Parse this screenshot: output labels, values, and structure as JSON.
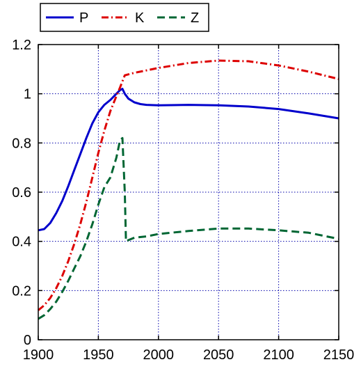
{
  "chart_data": {
    "type": "line",
    "title": "",
    "xlabel": "",
    "ylabel": "",
    "xlim": [
      1900,
      2150
    ],
    "ylim": [
      0,
      1.2
    ],
    "x_ticks": [
      1900,
      1950,
      2000,
      2050,
      2100,
      2150
    ],
    "x_tick_labels": [
      "1900",
      "1950",
      "2000",
      "2050",
      "2100",
      "2150"
    ],
    "y_ticks": [
      0,
      0.2,
      0.4,
      0.6,
      0.8,
      1.0,
      1.2
    ],
    "y_tick_labels": [
      "0",
      "0.2",
      "0.4",
      "0.6",
      "0.8",
      "1",
      "1.2"
    ],
    "grid": true,
    "legend_position": "top-left, above plot",
    "series": [
      {
        "name": "P",
        "color": "#0000cc",
        "style": "solid",
        "points": [
          [
            1900,
            0.445
          ],
          [
            1905,
            0.45
          ],
          [
            1910,
            0.475
          ],
          [
            1915,
            0.515
          ],
          [
            1920,
            0.565
          ],
          [
            1925,
            0.625
          ],
          [
            1930,
            0.69
          ],
          [
            1935,
            0.755
          ],
          [
            1940,
            0.82
          ],
          [
            1945,
            0.88
          ],
          [
            1950,
            0.925
          ],
          [
            1955,
            0.955
          ],
          [
            1960,
            0.975
          ],
          [
            1965,
            1.0
          ],
          [
            1968,
            1.015
          ],
          [
            1970,
            1.02
          ],
          [
            1972,
            1.0
          ],
          [
            1975,
            0.98
          ],
          [
            1980,
            0.965
          ],
          [
            1985,
            0.958
          ],
          [
            1990,
            0.955
          ],
          [
            2000,
            0.953
          ],
          [
            2025,
            0.955
          ],
          [
            2050,
            0.953
          ],
          [
            2075,
            0.948
          ],
          [
            2100,
            0.938
          ],
          [
            2125,
            0.92
          ],
          [
            2150,
            0.9
          ]
        ]
      },
      {
        "name": "K",
        "color": "#dd0000",
        "style": "dash-dot",
        "points": [
          [
            1900,
            0.12
          ],
          [
            1905,
            0.14
          ],
          [
            1910,
            0.17
          ],
          [
            1915,
            0.21
          ],
          [
            1920,
            0.26
          ],
          [
            1925,
            0.32
          ],
          [
            1930,
            0.39
          ],
          [
            1935,
            0.47
          ],
          [
            1940,
            0.56
          ],
          [
            1945,
            0.66
          ],
          [
            1950,
            0.76
          ],
          [
            1955,
            0.85
          ],
          [
            1960,
            0.93
          ],
          [
            1965,
            0.99
          ],
          [
            1968,
            1.025
          ],
          [
            1972,
            1.075
          ],
          [
            1980,
            1.085
          ],
          [
            2000,
            1.105
          ],
          [
            2025,
            1.125
          ],
          [
            2050,
            1.135
          ],
          [
            2075,
            1.132
          ],
          [
            2100,
            1.115
          ],
          [
            2125,
            1.09
          ],
          [
            2150,
            1.06
          ]
        ]
      },
      {
        "name": "Z",
        "color": "#006633",
        "style": "dashed",
        "points": [
          [
            1900,
            0.085
          ],
          [
            1905,
            0.1
          ],
          [
            1910,
            0.125
          ],
          [
            1915,
            0.155
          ],
          [
            1920,
            0.195
          ],
          [
            1925,
            0.24
          ],
          [
            1930,
            0.29
          ],
          [
            1935,
            0.34
          ],
          [
            1940,
            0.4
          ],
          [
            1945,
            0.47
          ],
          [
            1950,
            0.55
          ],
          [
            1955,
            0.62
          ],
          [
            1960,
            0.66
          ],
          [
            1965,
            0.74
          ],
          [
            1968,
            0.81
          ],
          [
            1970,
            0.82
          ],
          [
            1972,
            0.6
          ],
          [
            1973,
            0.4
          ],
          [
            1975,
            0.405
          ],
          [
            1980,
            0.415
          ],
          [
            1990,
            0.42
          ],
          [
            2000,
            0.43
          ],
          [
            2025,
            0.442
          ],
          [
            2050,
            0.452
          ],
          [
            2075,
            0.452
          ],
          [
            2100,
            0.445
          ],
          [
            2125,
            0.435
          ],
          [
            2140,
            0.42
          ],
          [
            2150,
            0.41
          ]
        ]
      }
    ]
  }
}
